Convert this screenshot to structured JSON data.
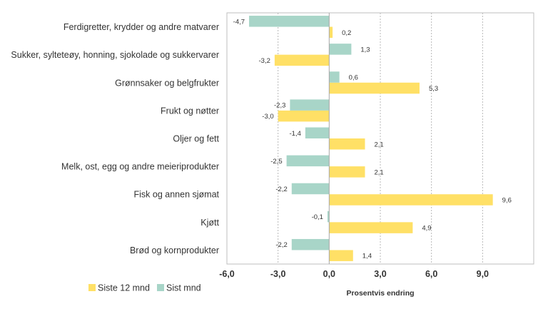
{
  "chart_data": {
    "type": "bar",
    "orientation": "horizontal",
    "categories": [
      "Ferdigretter, krydder og andre matvarer",
      "Sukker, sylteteøy, honning, sjokolade og sukkervarer",
      "Grønnsaker og belgfrukter",
      "Frukt og nøtter",
      "Oljer og fett",
      "Melk, ost, egg og andre meieriprodukter",
      "Fisk og annen sjømat",
      "Kjøtt",
      "Brød og kornprodukter"
    ],
    "series": [
      {
        "name": "Siste 12 mnd",
        "color": "#FFE066",
        "values": [
          0.2,
          -3.2,
          5.3,
          -3.0,
          2.1,
          2.1,
          9.6,
          4.9,
          1.4
        ],
        "data_labels": [
          "0,2",
          "-3,2",
          "5,3",
          "-3,0",
          "2,1",
          "2,1",
          "9,6",
          "4,9",
          "1,4"
        ]
      },
      {
        "name": "Sist mnd",
        "color": "#A8D5C8",
        "values": [
          -4.7,
          1.3,
          0.6,
          -2.3,
          -1.4,
          -2.5,
          -2.2,
          -0.1,
          -2.2
        ],
        "data_labels": [
          "-4,7",
          "1,3",
          "0,6",
          "-2,3",
          "-1,4",
          "-2,5",
          "-2,2",
          "-0,1",
          "-2,2"
        ]
      }
    ],
    "xlim": [
      -6.0,
      12.0
    ],
    "xticks": [
      -6.0,
      -3.0,
      0.0,
      3.0,
      6.0,
      9.0
    ],
    "xtick_labels": [
      "-6,0",
      "-3,0",
      "0,0",
      "3,0",
      "6,0",
      "9,0"
    ],
    "xlabel": "Prosentvis endring",
    "ylabel": "",
    "grid": "vertical-dotted",
    "legend_position": "bottom-left"
  }
}
